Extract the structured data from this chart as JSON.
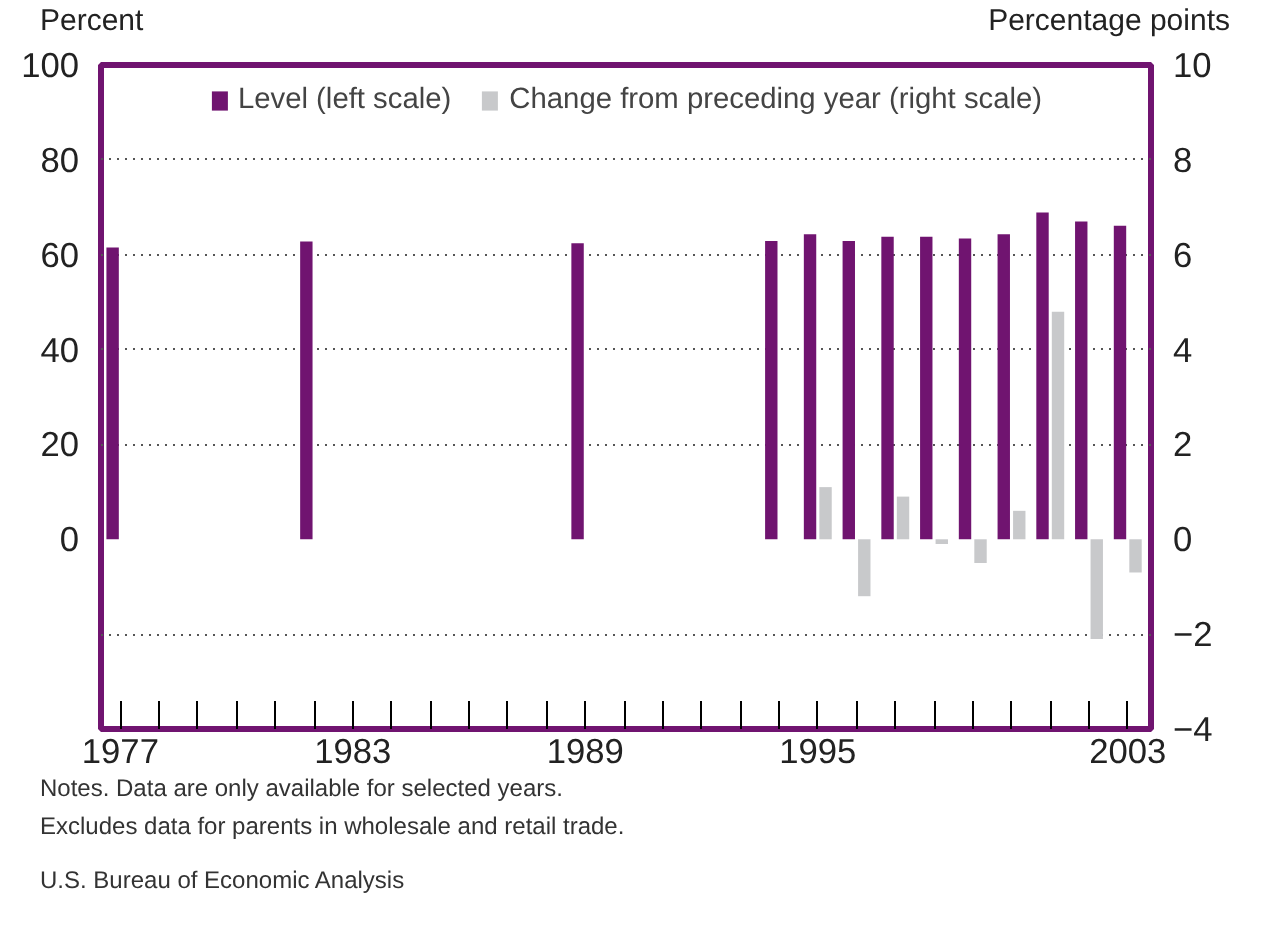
{
  "chart_data": {
    "type": "bar",
    "xlabel": null,
    "ylabel": "Percent",
    "y2label": "Percentage points",
    "x": [
      1977,
      1982,
      1989,
      1994,
      1995,
      1996,
      1997,
      1998,
      1999,
      2000,
      2001,
      2002,
      2003
    ],
    "series": [
      {
        "name": "Level (left scale)",
        "color": "#701470",
        "values": [
          61.5,
          62.8,
          62.4,
          62.9,
          64.3,
          62.9,
          63.8,
          63.8,
          63.4,
          64.3,
          68.9,
          67.0,
          66.1
        ]
      },
      {
        "name": "Change from preceding year (right scale)",
        "color": "#c8c9cb",
        "axis": "y2",
        "values": [
          null,
          null,
          null,
          null,
          1.1,
          -1.2,
          0.9,
          -0.1,
          -0.5,
          0.6,
          4.8,
          -2.1,
          -0.7
        ]
      }
    ],
    "xlim": [
      1976.5,
      2003.6
    ],
    "xticks": [
      1977,
      {
        "value": 1978,
        "label": null
      },
      {
        "value": 1979,
        "label": null
      },
      {
        "value": 1980,
        "label": null
      },
      {
        "value": 1981,
        "label": null
      },
      {
        "value": 1982,
        "label": null
      },
      1983,
      {
        "value": 1984,
        "label": null
      },
      {
        "value": 1985,
        "label": null
      },
      {
        "value": 1986,
        "label": null
      },
      {
        "value": 1987,
        "label": null
      },
      {
        "value": 1988,
        "label": null
      },
      1989,
      {
        "value": 1990,
        "label": null
      },
      {
        "value": 1991,
        "label": null
      },
      {
        "value": 1992,
        "label": null
      },
      {
        "value": 1993,
        "label": null
      },
      {
        "value": 1994,
        "label": null
      },
      1995,
      {
        "value": 1996,
        "label": null
      },
      {
        "value": 1997,
        "label": null
      },
      {
        "value": 1998,
        "label": null
      },
      {
        "value": 1999,
        "label": null
      },
      {
        "value": 2000,
        "label": null
      },
      {
        "value": 2001,
        "label": null
      },
      {
        "value": 2002,
        "label": null
      },
      2003
    ],
    "ylim": [
      -40,
      100
    ],
    "yticks": [
      0,
      20,
      40,
      60,
      80,
      100
    ],
    "y2lim": [
      -4,
      10
    ],
    "y2ticks": [
      {
        "value": -4,
        "label": "−4"
      },
      {
        "value": -2,
        "label": "−2"
      },
      0,
      2,
      4,
      6,
      8,
      10
    ],
    "grid": "y",
    "legend": "top",
    "annotations": [
      "Notes. Data are only available for selected years.",
      "Excludes data for parents in wholesale and retail trade.",
      "U.S. Bureau of Economic Analysis"
    ]
  }
}
